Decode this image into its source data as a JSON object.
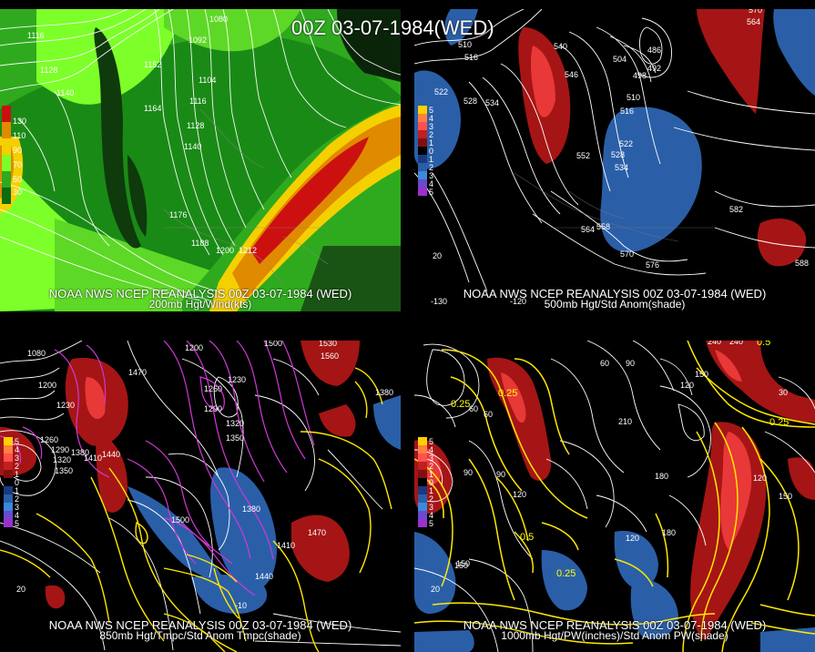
{
  "main_title": "00Z 03-07-1984(WED)",
  "panels": [
    {
      "id": "tl",
      "caption1": "NOAA NWS NCEP REANALYSIS 00Z 03-07-1984 (WED)",
      "caption2": "200mb Hgt/Wind(kts)",
      "legend": [
        "130",
        "110",
        "90",
        "70",
        "50",
        "30"
      ],
      "labels": [
        "1080",
        "1116",
        "1092",
        "1128",
        "1152",
        "1140",
        "1104",
        "1164",
        "1116",
        "1128",
        "1140",
        "1176",
        "1188",
        "1200",
        "1212"
      ]
    },
    {
      "id": "tr",
      "caption1": "NOAA NWS NCEP REANALYSIS 00Z 03-07-1984 (WED)",
      "caption2": "500mb Hgt/Std Anom(shade)",
      "legend": [
        "5",
        "4",
        "3",
        "2",
        "1",
        "0",
        "1",
        "2",
        "3",
        "4",
        "5"
      ],
      "labels": [
        "510",
        "516",
        "522",
        "528",
        "534",
        "540",
        "546",
        "486",
        "492",
        "498",
        "504",
        "510",
        "516",
        "522",
        "528",
        "534",
        "552",
        "558",
        "564",
        "570",
        "576",
        "582",
        "588",
        "570",
        "564",
        "20",
        "-120",
        "-130"
      ]
    },
    {
      "id": "bl",
      "caption1": "NOAA NWS NCEP REANALYSIS 00Z 03-07-1984 (WED)",
      "caption2": "850mb Hgt/Tmpc/Std Anom Tmpc(shade)",
      "legend": [
        "5",
        "4",
        "3",
        "2",
        "1",
        "0",
        "1",
        "2",
        "3",
        "4",
        "5"
      ],
      "labels": [
        "1080",
        "1200",
        "1230",
        "1260",
        "1290",
        "1320",
        "1350",
        "1380",
        "1410",
        "1440",
        "1470",
        "1500",
        "1200",
        "1230",
        "1260",
        "1290",
        "1320",
        "1350",
        "1380",
        "1410",
        "1440",
        "1470",
        "1500",
        "1530",
        "1560",
        "1380",
        "20",
        "-10"
      ]
    },
    {
      "id": "br",
      "caption1": "NOAA NWS NCEP REANALYSIS 00Z 03-07-1984 (WED)",
      "caption2": "1000mb Hgt/PW(inches)/Std Anom PW(shade)",
      "legend": [
        "5",
        "4",
        "3",
        "2",
        "1",
        "0",
        "1",
        "2",
        "3",
        "4",
        "5"
      ],
      "labels": [
        "60",
        "90",
        "120",
        "150",
        "180",
        "210",
        "240",
        "150",
        "120",
        "90",
        "60",
        "30",
        "150",
        "120",
        "180",
        "120",
        "150",
        "90",
        "60",
        "240",
        "0.25",
        "0.5",
        "0.25",
        "0.25",
        "0.5",
        "0.25",
        "20"
      ]
    }
  ],
  "colors": {
    "wind_light": "#7dff2a",
    "wind_mid": "#2faa1e",
    "wind_dark": "#0f6a12",
    "wind_orange": "#e08a00",
    "wind_yellow": "#f5d000",
    "wind_red": "#cc1010",
    "anom_red": "#a51515",
    "anom_red_bright": "#e83838",
    "anom_blue": "#2a5fa8",
    "contour_white": "#ffffff",
    "contour_magenta": "#d038d8",
    "contour_yellow": "#ffe800"
  }
}
